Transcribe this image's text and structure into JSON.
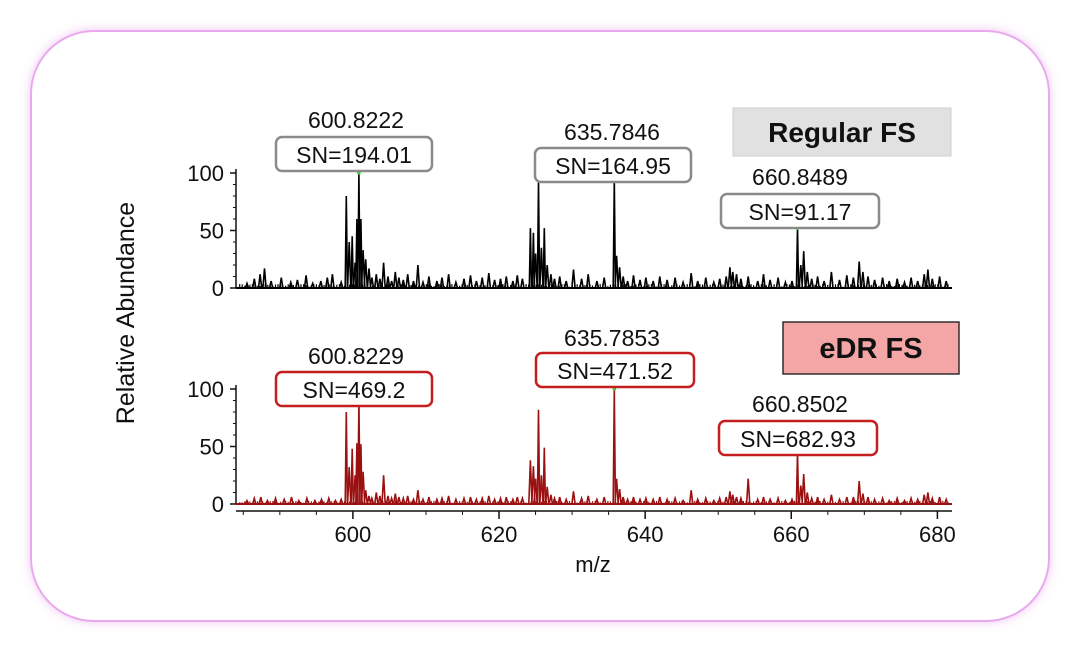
{
  "chart_data": {
    "type": "line",
    "ylabel": "Relative Abundance",
    "xlabel": "m/z",
    "xlim": [
      584,
      682
    ],
    "ylim": [
      0,
      100
    ],
    "xticks": [
      600,
      620,
      640,
      660,
      680
    ],
    "xtick_labels": [
      "600",
      "620",
      "640",
      "660",
      "680"
    ],
    "yticks": [
      0,
      50,
      100
    ],
    "ytick_labels": [
      "0",
      "50",
      "100"
    ],
    "panels": [
      {
        "title": "Regular FS",
        "color": "#000000",
        "title_bg": "#e1e1e1",
        "box_color": "#8a8a8a",
        "annotations": [
          {
            "mz": 600.8222,
            "mz_label": "600.8222",
            "sn": "SN=194.01",
            "y": 100
          },
          {
            "mz": 635.7846,
            "mz_label": "635.7846",
            "sn": "SN=164.95",
            "y": 94
          },
          {
            "mz": 660.8489,
            "mz_label": "660.8489",
            "sn": "SN=91.17",
            "y": 52
          }
        ],
        "peaks": [
          [
            585.5,
            4
          ],
          [
            586.5,
            8
          ],
          [
            587.3,
            12
          ],
          [
            587.9,
            17
          ],
          [
            588.8,
            6
          ],
          [
            590.2,
            9
          ],
          [
            591.5,
            5
          ],
          [
            592.4,
            7
          ],
          [
            593.6,
            11
          ],
          [
            594.5,
            4
          ],
          [
            595.6,
            6
          ],
          [
            596.5,
            9
          ],
          [
            597.2,
            12
          ],
          [
            598.4,
            5
          ],
          [
            599.1,
            80
          ],
          [
            599.5,
            40
          ],
          [
            599.9,
            45
          ],
          [
            600.3,
            22
          ],
          [
            600.55,
            60
          ],
          [
            600.82,
            100
          ],
          [
            601.1,
            60
          ],
          [
            601.4,
            33
          ],
          [
            601.75,
            25
          ],
          [
            602.2,
            17
          ],
          [
            602.6,
            9
          ],
          [
            603.2,
            12
          ],
          [
            603.7,
            8
          ],
          [
            604.2,
            22
          ],
          [
            604.8,
            10
          ],
          [
            605.3,
            6
          ],
          [
            605.8,
            14
          ],
          [
            606.3,
            9
          ],
          [
            606.9,
            7
          ],
          [
            607.5,
            12
          ],
          [
            608.3,
            6
          ],
          [
            608.9,
            20
          ],
          [
            609.6,
            5
          ],
          [
            610.4,
            10
          ],
          [
            611.5,
            6
          ],
          [
            612.2,
            9
          ],
          [
            613.1,
            12
          ],
          [
            614.1,
            5
          ],
          [
            615.2,
            8
          ],
          [
            616.1,
            11
          ],
          [
            616.9,
            6
          ],
          [
            617.7,
            9
          ],
          [
            618.6,
            13
          ],
          [
            619.4,
            7
          ],
          [
            620.2,
            8
          ],
          [
            621.0,
            10
          ],
          [
            621.9,
            6
          ],
          [
            622.5,
            11
          ],
          [
            623.2,
            8
          ],
          [
            624.3,
            52
          ],
          [
            624.7,
            48
          ],
          [
            625.0,
            30
          ],
          [
            625.4,
            92
          ],
          [
            625.8,
            35
          ],
          [
            626.2,
            52
          ],
          [
            626.6,
            20
          ],
          [
            627.1,
            12
          ],
          [
            627.6,
            8
          ],
          [
            628.3,
            10
          ],
          [
            629.2,
            6
          ],
          [
            630.2,
            16
          ],
          [
            631.3,
            8
          ],
          [
            632.2,
            12
          ],
          [
            633.4,
            6
          ],
          [
            634.4,
            9
          ],
          [
            635.78,
            94
          ],
          [
            636.1,
            28
          ],
          [
            636.5,
            18
          ],
          [
            637.0,
            10
          ],
          [
            637.6,
            6
          ],
          [
            638.4,
            11
          ],
          [
            639.3,
            7
          ],
          [
            640.1,
            9
          ],
          [
            641.1,
            6
          ],
          [
            642.0,
            10
          ],
          [
            643.0,
            7
          ],
          [
            644.1,
            9
          ],
          [
            645.2,
            5
          ],
          [
            646.3,
            13
          ],
          [
            647.2,
            6
          ],
          [
            648.3,
            9
          ],
          [
            649.4,
            5
          ],
          [
            650.2,
            8
          ],
          [
            651.1,
            10
          ],
          [
            651.6,
            18
          ],
          [
            652.0,
            14
          ],
          [
            652.5,
            12
          ],
          [
            653.1,
            8
          ],
          [
            654.1,
            10
          ],
          [
            655.4,
            6
          ],
          [
            656.2,
            12
          ],
          [
            657.1,
            7
          ],
          [
            658.2,
            9
          ],
          [
            659.2,
            5
          ],
          [
            660.1,
            6
          ],
          [
            660.85,
            52
          ],
          [
            661.3,
            20
          ],
          [
            661.7,
            32
          ],
          [
            662.2,
            14
          ],
          [
            662.8,
            8
          ],
          [
            663.6,
            10
          ],
          [
            664.5,
            6
          ],
          [
            665.5,
            14
          ],
          [
            666.6,
            7
          ],
          [
            667.6,
            11
          ],
          [
            668.5,
            9
          ],
          [
            669.3,
            23
          ],
          [
            669.8,
            14
          ],
          [
            670.5,
            10
          ],
          [
            671.4,
            7
          ],
          [
            672.5,
            9
          ],
          [
            673.4,
            6
          ],
          [
            674.5,
            8
          ],
          [
            675.5,
            5
          ],
          [
            676.4,
            9
          ],
          [
            677.3,
            6
          ],
          [
            678.2,
            12
          ],
          [
            678.7,
            16
          ],
          [
            679.3,
            8
          ],
          [
            680.3,
            10
          ],
          [
            681.2,
            6
          ]
        ]
      },
      {
        "title": "eDR FS",
        "color": "#9b1010",
        "title_bg": "#f4a6a6",
        "box_color": "#c41e1e",
        "annotations": [
          {
            "mz": 600.8229,
            "mz_label": "600.8229",
            "sn": "SN=469.2",
            "y": 90
          },
          {
            "mz": 635.7853,
            "mz_label": "635.7853",
            "sn": "SN=471.52",
            "y": 100
          },
          {
            "mz": 660.8502,
            "mz_label": "660.8502",
            "sn": "SN=682.93",
            "y": 45
          }
        ],
        "peaks": [
          [
            585.5,
            3
          ],
          [
            586.5,
            5
          ],
          [
            587.4,
            6
          ],
          [
            588.3,
            3
          ],
          [
            589.4,
            5
          ],
          [
            590.6,
            4
          ],
          [
            591.6,
            6
          ],
          [
            592.6,
            3
          ],
          [
            593.7,
            5
          ],
          [
            594.8,
            3
          ],
          [
            595.7,
            4
          ],
          [
            596.7,
            5
          ],
          [
            597.6,
            3
          ],
          [
            598.4,
            4
          ],
          [
            599.1,
            80
          ],
          [
            599.5,
            32
          ],
          [
            599.9,
            48
          ],
          [
            600.3,
            25
          ],
          [
            600.55,
            53
          ],
          [
            600.82,
            90
          ],
          [
            601.1,
            52
          ],
          [
            601.4,
            28
          ],
          [
            601.75,
            12
          ],
          [
            602.2,
            7
          ],
          [
            602.6,
            5
          ],
          [
            603.2,
            10
          ],
          [
            603.7,
            7
          ],
          [
            604.2,
            25
          ],
          [
            604.8,
            7
          ],
          [
            605.3,
            5
          ],
          [
            605.8,
            9
          ],
          [
            606.3,
            6
          ],
          [
            606.9,
            5
          ],
          [
            607.5,
            7
          ],
          [
            608.3,
            4
          ],
          [
            608.9,
            12
          ],
          [
            609.6,
            4
          ],
          [
            610.4,
            6
          ],
          [
            611.5,
            4
          ],
          [
            612.2,
            5
          ],
          [
            613.1,
            7
          ],
          [
            614.1,
            4
          ],
          [
            615.2,
            5
          ],
          [
            616.1,
            6
          ],
          [
            616.9,
            4
          ],
          [
            617.7,
            5
          ],
          [
            618.6,
            7
          ],
          [
            619.4,
            4
          ],
          [
            620.2,
            5
          ],
          [
            621.0,
            6
          ],
          [
            621.9,
            4
          ],
          [
            622.5,
            6
          ],
          [
            623.2,
            5
          ],
          [
            624.3,
            38
          ],
          [
            624.7,
            33
          ],
          [
            625.0,
            22
          ],
          [
            625.4,
            82
          ],
          [
            625.8,
            25
          ],
          [
            626.2,
            49
          ],
          [
            626.6,
            15
          ],
          [
            627.1,
            8
          ],
          [
            627.6,
            5
          ],
          [
            628.3,
            6
          ],
          [
            629.2,
            4
          ],
          [
            630.2,
            11
          ],
          [
            631.3,
            5
          ],
          [
            632.2,
            7
          ],
          [
            633.4,
            4
          ],
          [
            634.4,
            6
          ],
          [
            635.78,
            100
          ],
          [
            636.1,
            22
          ],
          [
            636.5,
            13
          ],
          [
            637.0,
            6
          ],
          [
            637.6,
            4
          ],
          [
            638.4,
            6
          ],
          [
            639.3,
            4
          ],
          [
            640.1,
            5
          ],
          [
            641.1,
            4
          ],
          [
            642.0,
            6
          ],
          [
            643.0,
            4
          ],
          [
            644.1,
            5
          ],
          [
            645.2,
            3
          ],
          [
            646.3,
            12
          ],
          [
            647.2,
            4
          ],
          [
            648.3,
            5
          ],
          [
            649.4,
            3
          ],
          [
            650.2,
            5
          ],
          [
            651.1,
            6
          ],
          [
            651.6,
            11
          ],
          [
            652.0,
            8
          ],
          [
            652.5,
            6
          ],
          [
            653.1,
            5
          ],
          [
            654.1,
            22
          ],
          [
            655.4,
            4
          ],
          [
            656.2,
            6
          ],
          [
            657.1,
            4
          ],
          [
            658.2,
            5
          ],
          [
            659.2,
            3
          ],
          [
            660.1,
            4
          ],
          [
            660.85,
            45
          ],
          [
            661.3,
            16
          ],
          [
            661.7,
            26
          ],
          [
            662.2,
            10
          ],
          [
            662.8,
            5
          ],
          [
            663.6,
            6
          ],
          [
            664.5,
            4
          ],
          [
            665.5,
            8
          ],
          [
            666.6,
            4
          ],
          [
            667.6,
            6
          ],
          [
            668.5,
            6
          ],
          [
            669.3,
            20
          ],
          [
            669.8,
            9
          ],
          [
            670.5,
            6
          ],
          [
            671.4,
            4
          ],
          [
            672.5,
            5
          ],
          [
            673.4,
            3
          ],
          [
            674.5,
            5
          ],
          [
            675.5,
            3
          ],
          [
            676.4,
            5
          ],
          [
            677.3,
            4
          ],
          [
            678.2,
            8
          ],
          [
            678.7,
            10
          ],
          [
            679.3,
            5
          ],
          [
            680.3,
            6
          ],
          [
            681.2,
            4
          ]
        ]
      }
    ]
  }
}
